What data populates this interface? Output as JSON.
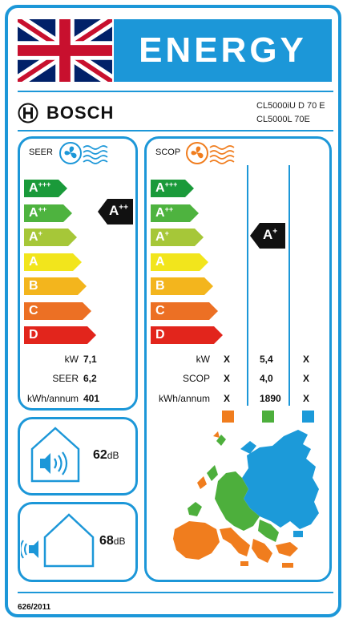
{
  "header": {
    "title": "ENERGY"
  },
  "brand": {
    "name": "BOSCH"
  },
  "models": [
    "CL5000iU D 70 E",
    "CL5000L 70E"
  ],
  "seer": {
    "label": "SEER",
    "class_rating": {
      "main": "A",
      "sup": "++"
    },
    "rows": [
      {
        "label": "kW",
        "value": "7,1"
      },
      {
        "label": "SEER",
        "value": "6,2"
      },
      {
        "label": "kWh/annum",
        "value": "401"
      }
    ]
  },
  "scop": {
    "label": "SCOP",
    "class_rating": {
      "main": "A",
      "sup": "+"
    },
    "rows": [
      {
        "label": "kW",
        "values": [
          "X",
          "5,4",
          "X"
        ]
      },
      {
        "label": "SCOP",
        "values": [
          "X",
          "4,0",
          "X"
        ]
      },
      {
        "label": "kWh/annum",
        "values": [
          "X",
          "1890",
          "X"
        ]
      }
    ],
    "zone_colors": [
      "#f07d1e",
      "#4daf3c",
      "#1c9ad9"
    ]
  },
  "scale": [
    {
      "main": "A",
      "sup": "+++",
      "color": "#1a9a3a"
    },
    {
      "main": "A",
      "sup": "++",
      "color": "#4eb33f"
    },
    {
      "main": "A",
      "sup": "+",
      "color": "#a6c738"
    },
    {
      "main": "A",
      "sup": "",
      "color": "#f2e51c"
    },
    {
      "main": "B",
      "sup": "",
      "color": "#f3b51d"
    },
    {
      "main": "C",
      "sup": "",
      "color": "#ec7024"
    },
    {
      "main": "D",
      "sup": "",
      "color": "#e2251c"
    }
  ],
  "noise": {
    "indoor": {
      "value": "62",
      "unit": "dB"
    },
    "outdoor": {
      "value": "68",
      "unit": "dB"
    }
  },
  "regulation": "626/2011",
  "colors": {
    "accent": "#1c97d8",
    "rating_arrow": "#111111"
  }
}
